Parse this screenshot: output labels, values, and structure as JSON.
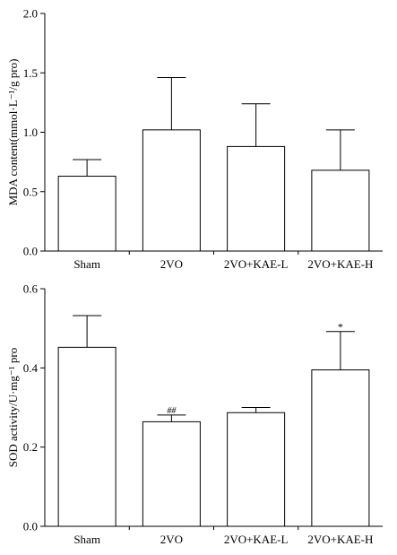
{
  "chart_data": [
    {
      "type": "bar",
      "categories": [
        "Sham",
        "2VO",
        "2VO+KAE-L",
        "2VO+KAE-H"
      ],
      "values": [
        0.63,
        1.02,
        0.88,
        0.68
      ],
      "errors": [
        0.14,
        0.44,
        0.36,
        0.34
      ],
      "annotations": [
        "",
        "",
        "",
        ""
      ],
      "ylabel": "MDA content(mmol·L⁻¹/g pro)",
      "ylim": [
        0,
        2.0
      ],
      "yticks": [
        "0.0",
        "0.5",
        "1.0",
        "1.5",
        "2.0"
      ],
      "grid": false
    },
    {
      "type": "bar",
      "categories": [
        "Sham",
        "2VO",
        "2VO+KAE-L",
        "2VO+KAE-H"
      ],
      "values": [
        0.452,
        0.264,
        0.287,
        0.395
      ],
      "errors": [
        0.08,
        0.017,
        0.013,
        0.097
      ],
      "annotations": [
        "",
        "##",
        "",
        "*"
      ],
      "ylabel": "SOD activity/U·mg⁻¹ pro",
      "ylim": [
        0,
        0.6
      ],
      "yticks": [
        "0.0",
        "0.2",
        "0.4",
        "0.6"
      ],
      "grid": false
    }
  ]
}
